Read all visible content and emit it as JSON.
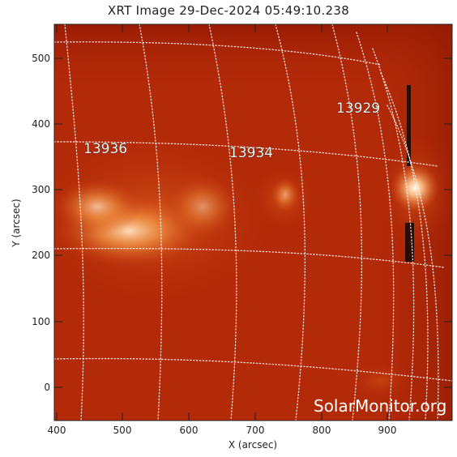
{
  "title": "XRT Image 29-Dec-2024 05:49:10.238",
  "axes": {
    "x_label": "X (arcsec)",
    "y_label": "Y (arcsec)",
    "x_ticks": [
      "400",
      "500",
      "600",
      "700",
      "800",
      "900"
    ],
    "y_ticks": [
      "0",
      "100",
      "200",
      "300",
      "400",
      "500"
    ]
  },
  "active_regions": [
    {
      "id": "13936"
    },
    {
      "id": "13934"
    },
    {
      "id": "13929"
    }
  ],
  "watermark": "SolarMonitor.org",
  "colors": {
    "background": "#b32a08",
    "bright": "#ffd0a0",
    "grid": "#ffffff"
  }
}
